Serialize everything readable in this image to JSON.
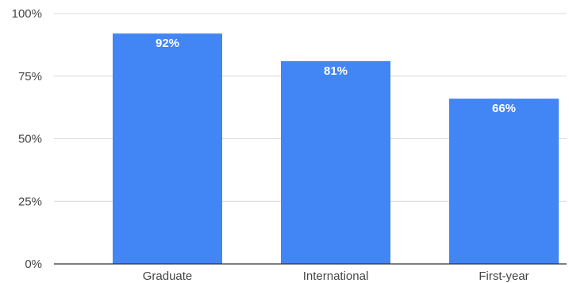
{
  "chart_data": {
    "type": "bar",
    "title": "",
    "xlabel": "",
    "ylabel": "",
    "categories": [
      "Graduate",
      "International",
      "First-year"
    ],
    "values": [
      92,
      81,
      66
    ],
    "data_labels": [
      "92%",
      "81%",
      "66%"
    ],
    "ylim": [
      0,
      100
    ],
    "y_ticks": [
      0,
      25,
      50,
      75,
      100
    ],
    "y_tick_labels": [
      "0%",
      "25%",
      "50%",
      "75%",
      "100%"
    ],
    "grid": true,
    "legend": "none"
  },
  "colors": {
    "bar": "#4285f4",
    "grid": "#d9d9d9",
    "axis": "#333333",
    "text": "#444444",
    "data_label": "#ffffff"
  }
}
